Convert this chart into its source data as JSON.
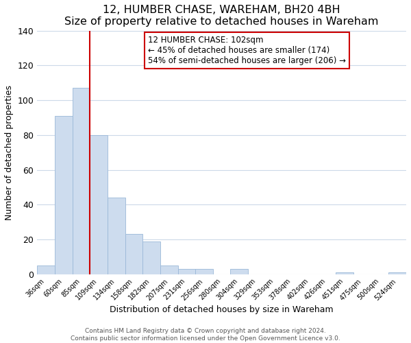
{
  "title": "12, HUMBER CHASE, WAREHAM, BH20 4BH",
  "subtitle": "Size of property relative to detached houses in Wareham",
  "xlabel": "Distribution of detached houses by size in Wareham",
  "ylabel": "Number of detached properties",
  "bar_labels": [
    "36sqm",
    "60sqm",
    "85sqm",
    "109sqm",
    "134sqm",
    "158sqm",
    "182sqm",
    "207sqm",
    "231sqm",
    "256sqm",
    "280sqm",
    "304sqm",
    "329sqm",
    "353sqm",
    "378sqm",
    "402sqm",
    "426sqm",
    "451sqm",
    "475sqm",
    "500sqm",
    "524sqm"
  ],
  "bar_values": [
    5,
    91,
    107,
    80,
    44,
    23,
    19,
    5,
    3,
    3,
    0,
    3,
    0,
    0,
    0,
    0,
    0,
    1,
    0,
    0,
    1
  ],
  "bar_color": "#cddcee",
  "bar_edge_color": "#9ab8d8",
  "vline_color": "#cc0000",
  "vline_x_index": 2.5,
  "ylim": [
    0,
    140
  ],
  "yticks": [
    0,
    20,
    40,
    60,
    80,
    100,
    120,
    140
  ],
  "annotation_title": "12 HUMBER CHASE: 102sqm",
  "annotation_line1": "← 45% of detached houses are smaller (174)",
  "annotation_line2": "54% of semi-detached houses are larger (206) →",
  "annotation_box_edge": "#cc0000",
  "footer_line1": "Contains HM Land Registry data © Crown copyright and database right 2024.",
  "footer_line2": "Contains public sector information licensed under the Open Government Licence v3.0.",
  "title_fontsize": 11.5,
  "subtitle_fontsize": 9.5,
  "xlabel_fontsize": 9,
  "ylabel_fontsize": 9,
  "tick_fontsize": 7,
  "footer_fontsize": 6.5,
  "annotation_fontsize": 8.5,
  "grid_color": "#ccd9e8",
  "bg_color": "#ffffff"
}
